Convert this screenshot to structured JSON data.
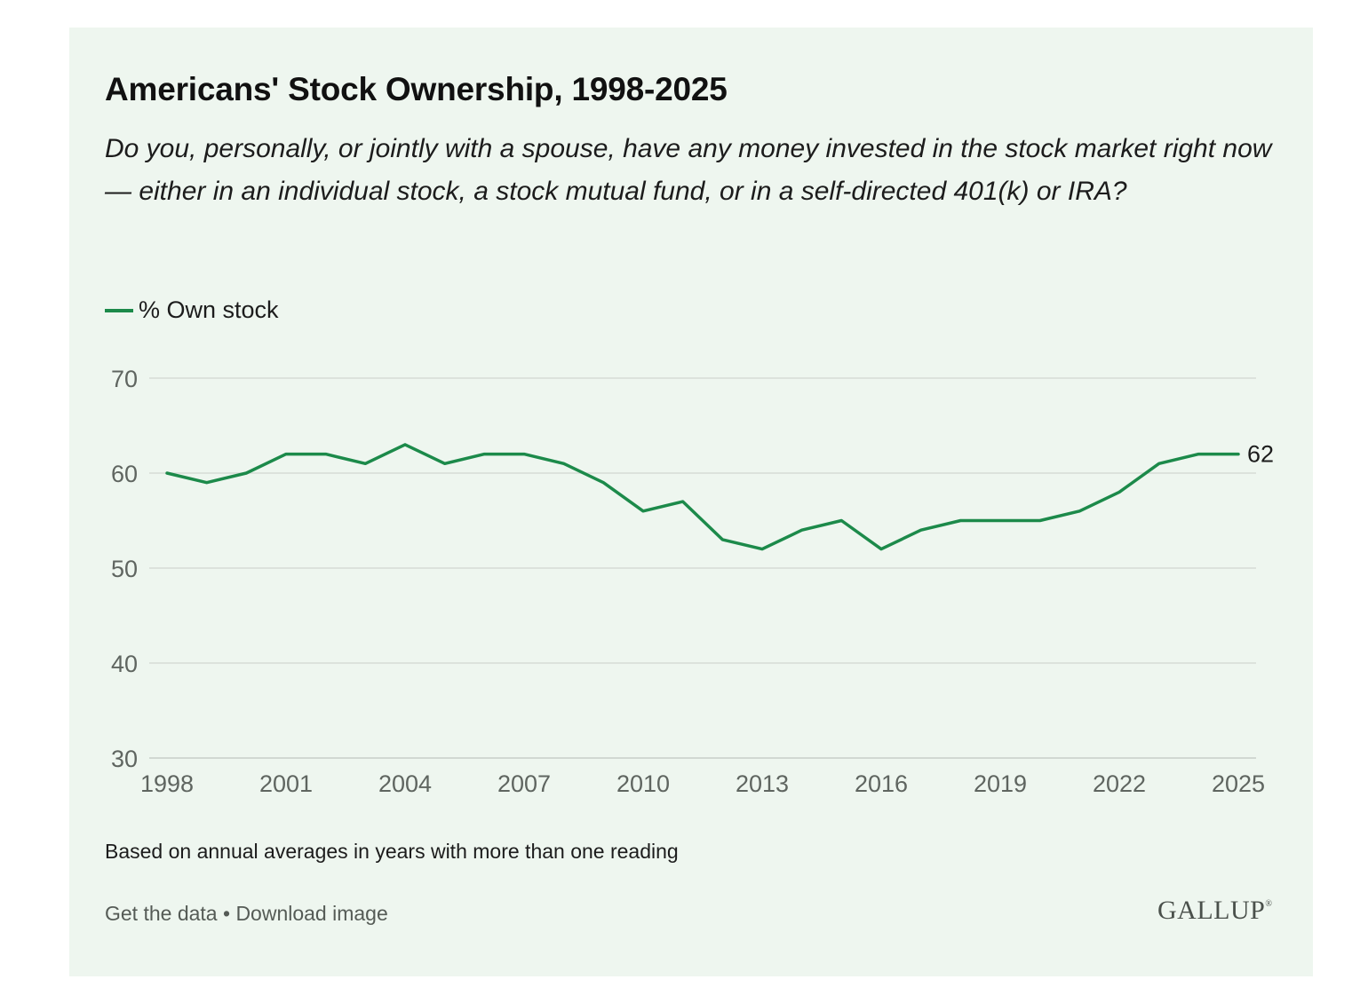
{
  "title": "Americans' Stock Ownership, 1998-2025",
  "subtitle": "Do you, personally, or jointly with a spouse, have any money invested in the stock market right now — either in an individual stock, a stock mutual fund, or in a self-directed 401(k) or IRA?",
  "note": "Based on annual averages in years with more than one reading",
  "footer": {
    "get_data": "Get the data",
    "separator": " • ",
    "download": "Download image"
  },
  "logo": "GALLUP",
  "colors": {
    "line": "#1c8a4a",
    "background": "#eef6ef",
    "grid": "#d5dcd6",
    "tick_text": "#5f6560"
  },
  "chart_data": {
    "type": "line",
    "title": "Americans' Stock Ownership, 1998-2025",
    "xlabel": "",
    "ylabel": "",
    "legend_placement": "top-left",
    "grid": true,
    "ylim": [
      30,
      70
    ],
    "xlim": [
      1998,
      2025
    ],
    "y_ticks": [
      30,
      40,
      50,
      60,
      70
    ],
    "x_ticks": [
      1998,
      2001,
      2004,
      2007,
      2010,
      2013,
      2016,
      2019,
      2022,
      2025
    ],
    "end_label": "62",
    "series": [
      {
        "name": "% Own stock",
        "x": [
          1998,
          1999,
          2000,
          2001,
          2002,
          2003,
          2004,
          2005,
          2006,
          2007,
          2008,
          2009,
          2010,
          2011,
          2012,
          2013,
          2014,
          2015,
          2016,
          2017,
          2018,
          2019,
          2020,
          2021,
          2022,
          2023,
          2024,
          2025
        ],
        "values": [
          60,
          59,
          60,
          62,
          62,
          61,
          63,
          61,
          62,
          62,
          61,
          59,
          56,
          57,
          53,
          52,
          54,
          55,
          52,
          54,
          55,
          55,
          55,
          56,
          58,
          61,
          62,
          62
        ]
      }
    ]
  }
}
